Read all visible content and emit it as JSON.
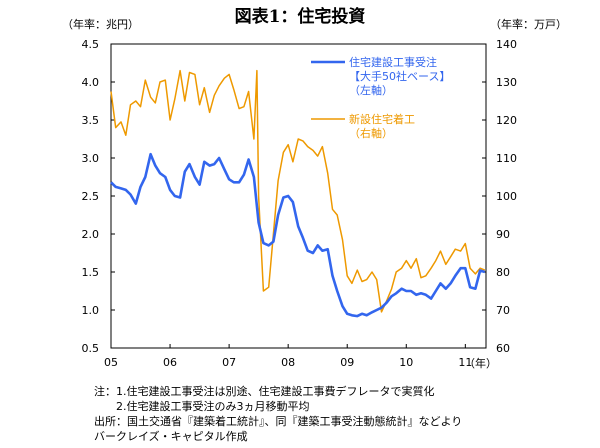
{
  "chart_data": {
    "type": "line",
    "title": "図表1：住宅投資",
    "left_unit": "（年率：兆円）",
    "right_unit": "（年率：万戸）",
    "x_unit": "（年）",
    "x_ticks": [
      "05",
      "06",
      "07",
      "08",
      "09",
      "10",
      "11"
    ],
    "x_range": [
      2005.0,
      2011.35
    ],
    "left_axis": {
      "range": [
        0.5,
        4.5
      ],
      "ticks": [
        "0.5",
        "1.0",
        "1.5",
        "2.0",
        "2.5",
        "3.0",
        "3.5",
        "4.0",
        "4.5"
      ]
    },
    "right_axis": {
      "range": [
        60,
        140
      ],
      "ticks": [
        "60",
        "70",
        "80",
        "90",
        "100",
        "110",
        "120",
        "130",
        "140"
      ]
    },
    "series": [
      {
        "name": "住宅建設工事受注【大手50社ベース】（左軸）",
        "legend_lines": [
          "住宅建設工事受注",
          "【大手50社ベース】",
          "（左軸）"
        ],
        "axis": "left",
        "color": "#3366ee",
        "points": [
          [
            2005.0,
            2.68
          ],
          [
            2005.08,
            2.62
          ],
          [
            2005.17,
            2.6
          ],
          [
            2005.25,
            2.58
          ],
          [
            2005.33,
            2.52
          ],
          [
            2005.42,
            2.4
          ],
          [
            2005.5,
            2.62
          ],
          [
            2005.58,
            2.75
          ],
          [
            2005.67,
            3.05
          ],
          [
            2005.75,
            2.9
          ],
          [
            2005.83,
            2.8
          ],
          [
            2005.92,
            2.75
          ],
          [
            2006.0,
            2.58
          ],
          [
            2006.08,
            2.5
          ],
          [
            2006.17,
            2.48
          ],
          [
            2006.25,
            2.82
          ],
          [
            2006.33,
            2.92
          ],
          [
            2006.42,
            2.75
          ],
          [
            2006.5,
            2.65
          ],
          [
            2006.58,
            2.95
          ],
          [
            2006.67,
            2.9
          ],
          [
            2006.75,
            2.92
          ],
          [
            2006.83,
            3.0
          ],
          [
            2006.92,
            2.85
          ],
          [
            2007.0,
            2.72
          ],
          [
            2007.08,
            2.68
          ],
          [
            2007.17,
            2.68
          ],
          [
            2007.25,
            2.78
          ],
          [
            2007.33,
            2.98
          ],
          [
            2007.42,
            2.75
          ],
          [
            2007.5,
            2.15
          ],
          [
            2007.58,
            1.88
          ],
          [
            2007.67,
            1.85
          ],
          [
            2007.75,
            1.9
          ],
          [
            2007.83,
            2.25
          ],
          [
            2007.92,
            2.48
          ],
          [
            2008.0,
            2.5
          ],
          [
            2008.08,
            2.42
          ],
          [
            2008.17,
            2.1
          ],
          [
            2008.25,
            1.95
          ],
          [
            2008.33,
            1.78
          ],
          [
            2008.42,
            1.75
          ],
          [
            2008.5,
            1.85
          ],
          [
            2008.58,
            1.78
          ],
          [
            2008.67,
            1.8
          ],
          [
            2008.75,
            1.45
          ],
          [
            2008.83,
            1.25
          ],
          [
            2008.92,
            1.05
          ],
          [
            2009.0,
            0.95
          ],
          [
            2009.08,
            0.93
          ],
          [
            2009.17,
            0.92
          ],
          [
            2009.25,
            0.95
          ],
          [
            2009.33,
            0.93
          ],
          [
            2009.42,
            0.97
          ],
          [
            2009.5,
            1.0
          ],
          [
            2009.58,
            1.03
          ],
          [
            2009.67,
            1.1
          ],
          [
            2009.75,
            1.18
          ],
          [
            2009.83,
            1.22
          ],
          [
            2009.92,
            1.28
          ],
          [
            2010.0,
            1.25
          ],
          [
            2010.08,
            1.25
          ],
          [
            2010.17,
            1.2
          ],
          [
            2010.25,
            1.22
          ],
          [
            2010.33,
            1.2
          ],
          [
            2010.42,
            1.15
          ],
          [
            2010.5,
            1.25
          ],
          [
            2010.58,
            1.35
          ],
          [
            2010.67,
            1.28
          ],
          [
            2010.75,
            1.35
          ],
          [
            2010.83,
            1.45
          ],
          [
            2010.92,
            1.55
          ],
          [
            2011.0,
            1.55
          ],
          [
            2011.08,
            1.3
          ],
          [
            2011.17,
            1.28
          ],
          [
            2011.25,
            1.52
          ],
          [
            2011.33,
            1.5
          ]
        ]
      },
      {
        "name": "新設住宅着工（右軸）",
        "legend_lines": [
          "新設住宅着工",
          "（右軸）"
        ],
        "axis": "right",
        "color": "#ee9900",
        "points": [
          [
            2005.0,
            127.5
          ],
          [
            2005.08,
            118.0
          ],
          [
            2005.17,
            119.5
          ],
          [
            2005.25,
            116.0
          ],
          [
            2005.33,
            124.0
          ],
          [
            2005.42,
            125.0
          ],
          [
            2005.5,
            123.5
          ],
          [
            2005.58,
            130.5
          ],
          [
            2005.67,
            126.0
          ],
          [
            2005.75,
            124.5
          ],
          [
            2005.83,
            130.0
          ],
          [
            2005.92,
            130.5
          ],
          [
            2006.0,
            120.0
          ],
          [
            2006.08,
            125.5
          ],
          [
            2006.17,
            133.0
          ],
          [
            2006.25,
            125.0
          ],
          [
            2006.33,
            132.5
          ],
          [
            2006.42,
            132.0
          ],
          [
            2006.5,
            124.0
          ],
          [
            2006.58,
            128.5
          ],
          [
            2006.67,
            122.0
          ],
          [
            2006.75,
            126.5
          ],
          [
            2006.83,
            129.0
          ],
          [
            2006.92,
            131.0
          ],
          [
            2007.0,
            132.0
          ],
          [
            2007.08,
            128.0
          ],
          [
            2007.17,
            123.0
          ],
          [
            2007.25,
            123.5
          ],
          [
            2007.33,
            127.5
          ],
          [
            2007.42,
            115.0
          ],
          [
            2007.47,
            133.0
          ],
          [
            2007.5,
            100.0
          ],
          [
            2007.58,
            75.0
          ],
          [
            2007.67,
            76.0
          ],
          [
            2007.75,
            90.0
          ],
          [
            2007.83,
            104.0
          ],
          [
            2007.92,
            111.5
          ],
          [
            2008.0,
            113.5
          ],
          [
            2008.08,
            109.0
          ],
          [
            2008.17,
            115.0
          ],
          [
            2008.25,
            114.5
          ],
          [
            2008.33,
            113.0
          ],
          [
            2008.42,
            112.0
          ],
          [
            2008.5,
            110.5
          ],
          [
            2008.58,
            113.0
          ],
          [
            2008.67,
            106.0
          ],
          [
            2008.75,
            96.5
          ],
          [
            2008.83,
            95.0
          ],
          [
            2008.92,
            88.5
          ],
          [
            2009.0,
            79.0
          ],
          [
            2009.08,
            77.0
          ],
          [
            2009.17,
            80.5
          ],
          [
            2009.25,
            77.5
          ],
          [
            2009.33,
            78.0
          ],
          [
            2009.42,
            80.0
          ],
          [
            2009.5,
            78.0
          ],
          [
            2009.58,
            69.5
          ],
          [
            2009.67,
            72.5
          ],
          [
            2009.75,
            75.5
          ],
          [
            2009.83,
            80.0
          ],
          [
            2009.92,
            81.0
          ],
          [
            2010.0,
            83.0
          ],
          [
            2010.08,
            81.0
          ],
          [
            2010.17,
            83.5
          ],
          [
            2010.25,
            78.5
          ],
          [
            2010.33,
            79.0
          ],
          [
            2010.42,
            81.0
          ],
          [
            2010.5,
            83.0
          ],
          [
            2010.58,
            85.5
          ],
          [
            2010.67,
            82.0
          ],
          [
            2010.75,
            84.0
          ],
          [
            2010.83,
            86.0
          ],
          [
            2010.92,
            85.5
          ],
          [
            2011.0,
            87.5
          ],
          [
            2011.08,
            81.0
          ],
          [
            2011.17,
            79.5
          ],
          [
            2011.25,
            81.0
          ],
          [
            2011.33,
            80.5
          ]
        ]
      }
    ]
  },
  "notes": [
    "注：1.住宅建設工事受注は別途、住宅建設工事費デフレータで実質化",
    "　　2.住宅建設工事受注のみ3ヵ月移動平均",
    "出所：国土交通省『建築着工統計』、同『建築工事受注動態統計』などより",
    "バークレイズ・キャピタル作成"
  ]
}
